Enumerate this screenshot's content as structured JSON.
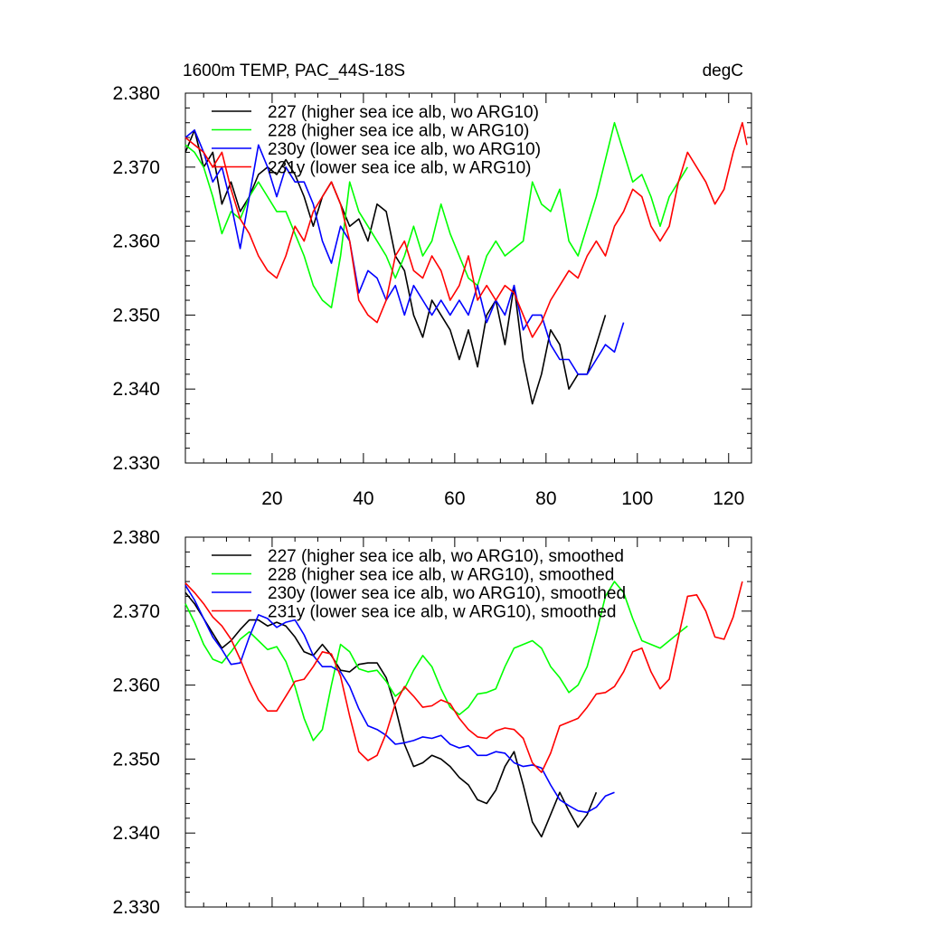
{
  "colors": {
    "black": "#000000",
    "green": "#00ff00",
    "blue": "#0000ff",
    "red": "#ff0000"
  },
  "chart_data": [
    {
      "type": "line",
      "title": "1600m TEMP, PAC_44S-18S",
      "units": "degC",
      "xlim": [
        1,
        125
      ],
      "ylim": [
        2.33,
        2.38
      ],
      "xticks": [
        20,
        40,
        60,
        80,
        100,
        120
      ],
      "xtick_labels": [
        "20",
        "40",
        "60",
        "80",
        "100",
        "120"
      ],
      "yticks": [
        2.33,
        2.34,
        2.35,
        2.36,
        2.37,
        2.38
      ],
      "ytick_labels": [
        "2.330",
        "2.340",
        "2.350",
        "2.360",
        "2.370",
        "2.380"
      ],
      "legend_position": "top-left",
      "series": [
        {
          "name": "227 (higher sea ice alb, wo ARG10)",
          "color": "#000000",
          "x": [
            1,
            3,
            5,
            7,
            9,
            11,
            13,
            15,
            17,
            19,
            21,
            23,
            25,
            27,
            29,
            31,
            33,
            35,
            37,
            39,
            41,
            43,
            45,
            47,
            49,
            51,
            53,
            55,
            57,
            59,
            61,
            63,
            65,
            67,
            69,
            71,
            73,
            75,
            77,
            79,
            81,
            83,
            85,
            87,
            89,
            91,
            93
          ],
          "y": [
            2.372,
            2.375,
            2.37,
            2.372,
            2.365,
            2.368,
            2.364,
            2.366,
            2.369,
            2.37,
            2.369,
            2.371,
            2.369,
            2.366,
            2.362,
            2.366,
            2.368,
            2.365,
            2.362,
            2.363,
            2.36,
            2.365,
            2.364,
            2.358,
            2.356,
            2.35,
            2.347,
            2.352,
            2.35,
            2.348,
            2.344,
            2.348,
            2.343,
            2.35,
            2.352,
            2.346,
            2.354,
            2.344,
            2.338,
            2.342,
            2.348,
            2.346,
            2.34,
            2.342,
            2.342,
            2.346,
            2.35
          ]
        },
        {
          "name": "228 (higher sea ice alb, w ARG10)",
          "color": "#00ff00",
          "x": [
            1,
            3,
            5,
            7,
            9,
            11,
            13,
            15,
            17,
            19,
            21,
            23,
            25,
            27,
            29,
            31,
            33,
            35,
            37,
            39,
            41,
            43,
            45,
            47,
            49,
            51,
            53,
            55,
            57,
            59,
            61,
            63,
            65,
            67,
            69,
            71,
            73,
            75,
            77,
            79,
            81,
            83,
            85,
            87,
            89,
            91,
            93,
            95,
            97,
            99,
            101,
            103,
            105,
            107,
            109,
            111
          ],
          "y": [
            2.373,
            2.372,
            2.37,
            2.366,
            2.361,
            2.364,
            2.363,
            2.366,
            2.368,
            2.366,
            2.364,
            2.364,
            2.361,
            2.358,
            2.354,
            2.352,
            2.351,
            2.358,
            2.368,
            2.364,
            2.362,
            2.36,
            2.358,
            2.355,
            2.358,
            2.362,
            2.358,
            2.36,
            2.365,
            2.361,
            2.358,
            2.355,
            2.354,
            2.358,
            2.36,
            2.358,
            2.359,
            2.36,
            2.368,
            2.365,
            2.364,
            2.367,
            2.36,
            2.358,
            2.362,
            2.366,
            2.371,
            2.376,
            2.372,
            2.368,
            2.369,
            2.366,
            2.362,
            2.366,
            2.368,
            2.37
          ]
        },
        {
          "name": "230y (lower sea ice alb, wo ARG10)",
          "color": "#0000ff",
          "x": [
            1,
            3,
            5,
            7,
            9,
            11,
            13,
            15,
            17,
            19,
            21,
            23,
            25,
            27,
            29,
            31,
            33,
            35,
            37,
            39,
            41,
            43,
            45,
            47,
            49,
            51,
            53,
            55,
            57,
            59,
            61,
            63,
            65,
            67,
            69,
            71,
            73,
            75,
            77,
            79,
            81,
            83,
            85,
            87,
            89,
            91,
            93,
            95,
            97
          ],
          "y": [
            2.374,
            2.375,
            2.372,
            2.368,
            2.37,
            2.365,
            2.359,
            2.366,
            2.373,
            2.37,
            2.366,
            2.37,
            2.368,
            2.368,
            2.365,
            2.36,
            2.357,
            2.362,
            2.36,
            2.353,
            2.356,
            2.355,
            2.352,
            2.354,
            2.35,
            2.354,
            2.352,
            2.35,
            2.352,
            2.35,
            2.352,
            2.35,
            2.354,
            2.349,
            2.352,
            2.35,
            2.354,
            2.348,
            2.35,
            2.35,
            2.346,
            2.344,
            2.344,
            2.342,
            2.342,
            2.344,
            2.346,
            2.345,
            2.349
          ]
        },
        {
          "name": "231y (lower sea ice alb, w ARG10)",
          "color": "#ff0000",
          "x": [
            1,
            3,
            5,
            7,
            9,
            11,
            13,
            15,
            17,
            19,
            21,
            23,
            25,
            27,
            29,
            31,
            33,
            35,
            37,
            39,
            41,
            43,
            45,
            47,
            49,
            51,
            53,
            55,
            57,
            59,
            61,
            63,
            65,
            67,
            69,
            71,
            73,
            75,
            77,
            79,
            81,
            83,
            85,
            87,
            89,
            91,
            93,
            95,
            97,
            99,
            101,
            103,
            105,
            107,
            109,
            111,
            113,
            115,
            117,
            119,
            121,
            123,
            124
          ],
          "y": [
            2.374,
            2.373,
            2.372,
            2.37,
            2.372,
            2.367,
            2.363,
            2.361,
            2.358,
            2.356,
            2.355,
            2.358,
            2.362,
            2.36,
            2.364,
            2.366,
            2.368,
            2.365,
            2.36,
            2.352,
            2.35,
            2.349,
            2.352,
            2.358,
            2.36,
            2.356,
            2.355,
            2.358,
            2.356,
            2.352,
            2.354,
            2.358,
            2.352,
            2.354,
            2.352,
            2.354,
            2.353,
            2.35,
            2.347,
            2.349,
            2.352,
            2.354,
            2.356,
            2.355,
            2.358,
            2.36,
            2.358,
            2.362,
            2.364,
            2.367,
            2.366,
            2.362,
            2.36,
            2.362,
            2.368,
            2.372,
            2.37,
            2.368,
            2.365,
            2.367,
            2.372,
            2.376,
            2.373
          ]
        }
      ]
    },
    {
      "type": "line",
      "title": "",
      "units": "",
      "xlim": [
        1,
        125
      ],
      "ylim": [
        2.33,
        2.38
      ],
      "xticks": [
        20,
        40,
        60,
        80,
        100,
        120
      ],
      "xtick_labels": [],
      "yticks": [
        2.33,
        2.34,
        2.35,
        2.36,
        2.37,
        2.38
      ],
      "ytick_labels": [
        "2.330",
        "2.340",
        "2.350",
        "2.360",
        "2.370",
        "2.380"
      ],
      "legend_position": "top-left",
      "series": [
        {
          "name": "227 (higher sea ice alb, wo ARG10), smoothed",
          "color": "#000000",
          "x": [
            1,
            3,
            5,
            7,
            9,
            11,
            13,
            15,
            17,
            19,
            21,
            23,
            25,
            27,
            29,
            31,
            33,
            35,
            37,
            39,
            41,
            43,
            45,
            47,
            49,
            51,
            53,
            55,
            57,
            59,
            61,
            63,
            65,
            67,
            69,
            71,
            73,
            75,
            77,
            79,
            81,
            83,
            85,
            87,
            89,
            91
          ],
          "y": [
            2.3725,
            2.371,
            2.369,
            2.367,
            2.365,
            2.366,
            2.3675,
            2.3688,
            2.3688,
            2.368,
            2.3685,
            2.368,
            2.3665,
            2.3645,
            2.364,
            2.3655,
            2.364,
            2.362,
            2.3618,
            2.3628,
            2.363,
            2.363,
            2.361,
            2.357,
            2.352,
            2.349,
            2.3495,
            2.3505,
            2.35,
            2.349,
            2.3475,
            2.3465,
            2.3445,
            2.344,
            2.3458,
            2.349,
            2.351,
            2.3465,
            2.3415,
            2.3395,
            2.3425,
            2.3455,
            2.343,
            2.3408,
            2.3425,
            2.3455
          ]
        },
        {
          "name": "228 (higher sea ice alb, w ARG10), smoothed",
          "color": "#00ff00",
          "x": [
            1,
            3,
            5,
            7,
            9,
            11,
            13,
            15,
            17,
            19,
            21,
            23,
            25,
            27,
            29,
            31,
            33,
            35,
            37,
            39,
            41,
            43,
            45,
            47,
            49,
            51,
            53,
            55,
            57,
            59,
            61,
            63,
            65,
            67,
            69,
            71,
            73,
            75,
            77,
            79,
            81,
            83,
            85,
            87,
            89,
            91,
            93,
            95,
            97,
            99,
            101,
            103,
            105,
            107,
            109,
            111
          ],
          "y": [
            2.371,
            2.3685,
            2.3655,
            2.3635,
            2.363,
            2.3645,
            2.3662,
            2.3672,
            2.366,
            2.3648,
            2.3652,
            2.3632,
            2.3598,
            2.3555,
            2.3525,
            2.354,
            2.36,
            2.3655,
            2.3645,
            2.3622,
            2.3618,
            2.362,
            2.3605,
            2.3585,
            2.3595,
            2.362,
            2.364,
            2.3625,
            2.3595,
            2.357,
            2.356,
            2.357,
            2.3588,
            2.359,
            2.3595,
            2.3625,
            2.365,
            2.3655,
            2.366,
            2.365,
            2.3625,
            2.361,
            2.359,
            2.36,
            2.3625,
            2.367,
            2.372,
            2.374,
            2.3725,
            2.369,
            2.366,
            2.3655,
            2.365,
            2.366,
            2.367,
            2.368
          ]
        },
        {
          "name": "230y (lower sea ice alb, wo ARG10), smoothed",
          "color": "#0000ff",
          "x": [
            1,
            3,
            5,
            7,
            9,
            11,
            13,
            15,
            17,
            19,
            21,
            23,
            25,
            27,
            29,
            31,
            33,
            35,
            37,
            39,
            41,
            43,
            45,
            47,
            49,
            51,
            53,
            55,
            57,
            59,
            61,
            63,
            65,
            67,
            69,
            71,
            73,
            75,
            77,
            79,
            81,
            83,
            85,
            87,
            89,
            91,
            93,
            95
          ],
          "y": [
            2.3735,
            2.3715,
            2.369,
            2.3665,
            2.3648,
            2.3628,
            2.363,
            2.3665,
            2.3695,
            2.369,
            2.3678,
            2.3685,
            2.3688,
            2.3668,
            2.364,
            2.3625,
            2.3625,
            2.3618,
            2.3598,
            2.3568,
            2.3545,
            2.354,
            2.3532,
            2.352,
            2.3522,
            2.3525,
            2.353,
            2.3528,
            2.3532,
            2.352,
            2.3515,
            2.3518,
            2.3505,
            2.3505,
            2.351,
            2.3508,
            2.3495,
            2.349,
            2.3492,
            2.3488,
            2.3465,
            2.3445,
            2.3437,
            2.343,
            2.3428,
            2.3435,
            2.345,
            2.3455
          ]
        },
        {
          "name": "231y (lower sea ice alb, w ARG10), smoothed",
          "color": "#ff0000",
          "x": [
            1,
            3,
            5,
            7,
            9,
            11,
            13,
            15,
            17,
            19,
            21,
            23,
            25,
            27,
            29,
            31,
            33,
            35,
            37,
            39,
            41,
            43,
            45,
            47,
            49,
            51,
            53,
            55,
            57,
            59,
            61,
            63,
            65,
            67,
            69,
            71,
            73,
            75,
            77,
            79,
            81,
            83,
            85,
            87,
            89,
            91,
            93,
            95,
            97,
            99,
            101,
            103,
            105,
            107,
            109,
            111,
            113,
            115,
            117,
            119,
            121,
            123
          ],
          "y": [
            2.3738,
            2.3725,
            2.371,
            2.3692,
            2.368,
            2.3662,
            2.3635,
            2.3605,
            2.358,
            2.3565,
            2.3565,
            2.3585,
            2.3605,
            2.3608,
            2.3625,
            2.3645,
            2.3642,
            2.3612,
            2.3558,
            2.351,
            2.3498,
            2.3505,
            2.3535,
            2.3575,
            2.3598,
            2.3585,
            2.357,
            2.3572,
            2.358,
            2.3575,
            2.3555,
            2.354,
            2.353,
            2.3528,
            2.3538,
            2.3542,
            2.354,
            2.3528,
            2.3495,
            2.3482,
            2.3508,
            2.3545,
            2.355,
            2.3555,
            2.357,
            2.3588,
            2.359,
            2.3598,
            2.3618,
            2.3645,
            2.365,
            2.3618,
            2.3595,
            2.3608,
            2.3665,
            2.372,
            2.3722,
            2.37,
            2.3665,
            2.3662,
            2.3692,
            2.374
          ]
        }
      ]
    }
  ]
}
